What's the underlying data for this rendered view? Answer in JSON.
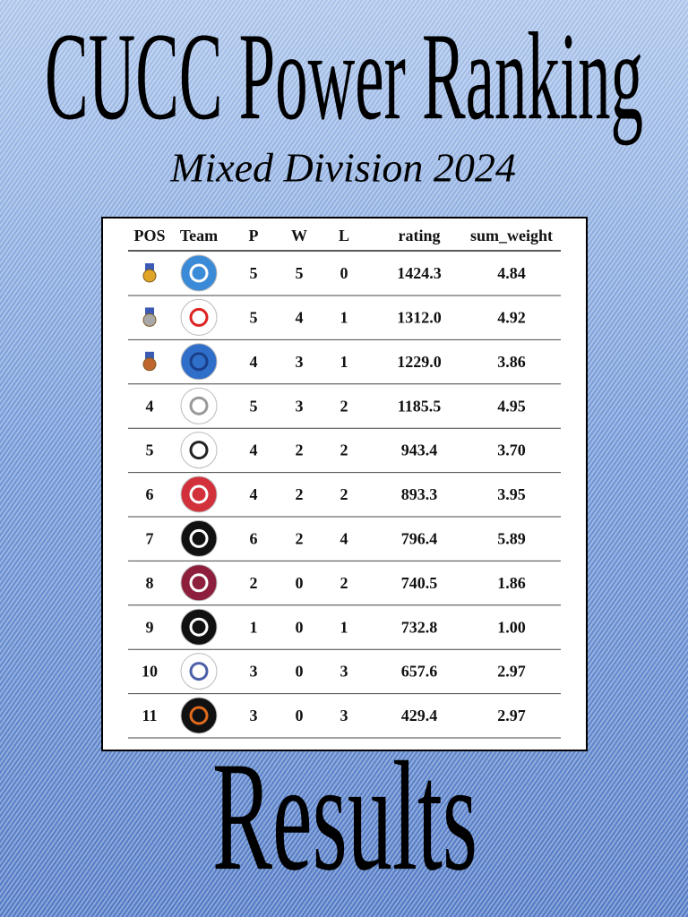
{
  "header": {
    "title": "CUCC Power Ranking",
    "subtitle": "Mixed Division 2024"
  },
  "table": {
    "columns": [
      "POS",
      "Team",
      "P",
      "W",
      "L",
      "rating",
      "sum_weight"
    ],
    "rows": [
      {
        "pos": null,
        "p": 5,
        "w": 5,
        "l": 0,
        "rating": "1424.3",
        "sum_weight": "4.84"
      },
      {
        "pos": null,
        "p": 5,
        "w": 4,
        "l": 1,
        "rating": "1312.0",
        "sum_weight": "4.92"
      },
      {
        "pos": null,
        "p": 4,
        "w": 3,
        "l": 1,
        "rating": "1229.0",
        "sum_weight": "3.86"
      },
      {
        "pos": 4,
        "p": 5,
        "w": 3,
        "l": 2,
        "rating": "1185.5",
        "sum_weight": "4.95"
      },
      {
        "pos": 5,
        "p": 4,
        "w": 2,
        "l": 2,
        "rating": "943.4",
        "sum_weight": "3.70"
      },
      {
        "pos": 6,
        "p": 4,
        "w": 2,
        "l": 2,
        "rating": "893.3",
        "sum_weight": "3.95"
      },
      {
        "pos": 7,
        "p": 6,
        "w": 2,
        "l": 4,
        "rating": "796.4",
        "sum_weight": "5.89"
      },
      {
        "pos": 8,
        "p": 2,
        "w": 0,
        "l": 2,
        "rating": "740.5",
        "sum_weight": "1.86"
      },
      {
        "pos": 9,
        "p": 1,
        "w": 0,
        "l": 1,
        "rating": "732.8",
        "sum_weight": "1.00"
      },
      {
        "pos": 10,
        "p": 3,
        "w": 0,
        "l": 3,
        "rating": "657.6",
        "sum_weight": "2.97"
      },
      {
        "pos": 11,
        "p": 3,
        "w": 0,
        "l": 3,
        "rating": "429.4",
        "sum_weight": "2.97"
      }
    ]
  },
  "footer": {
    "title": "Results"
  }
}
